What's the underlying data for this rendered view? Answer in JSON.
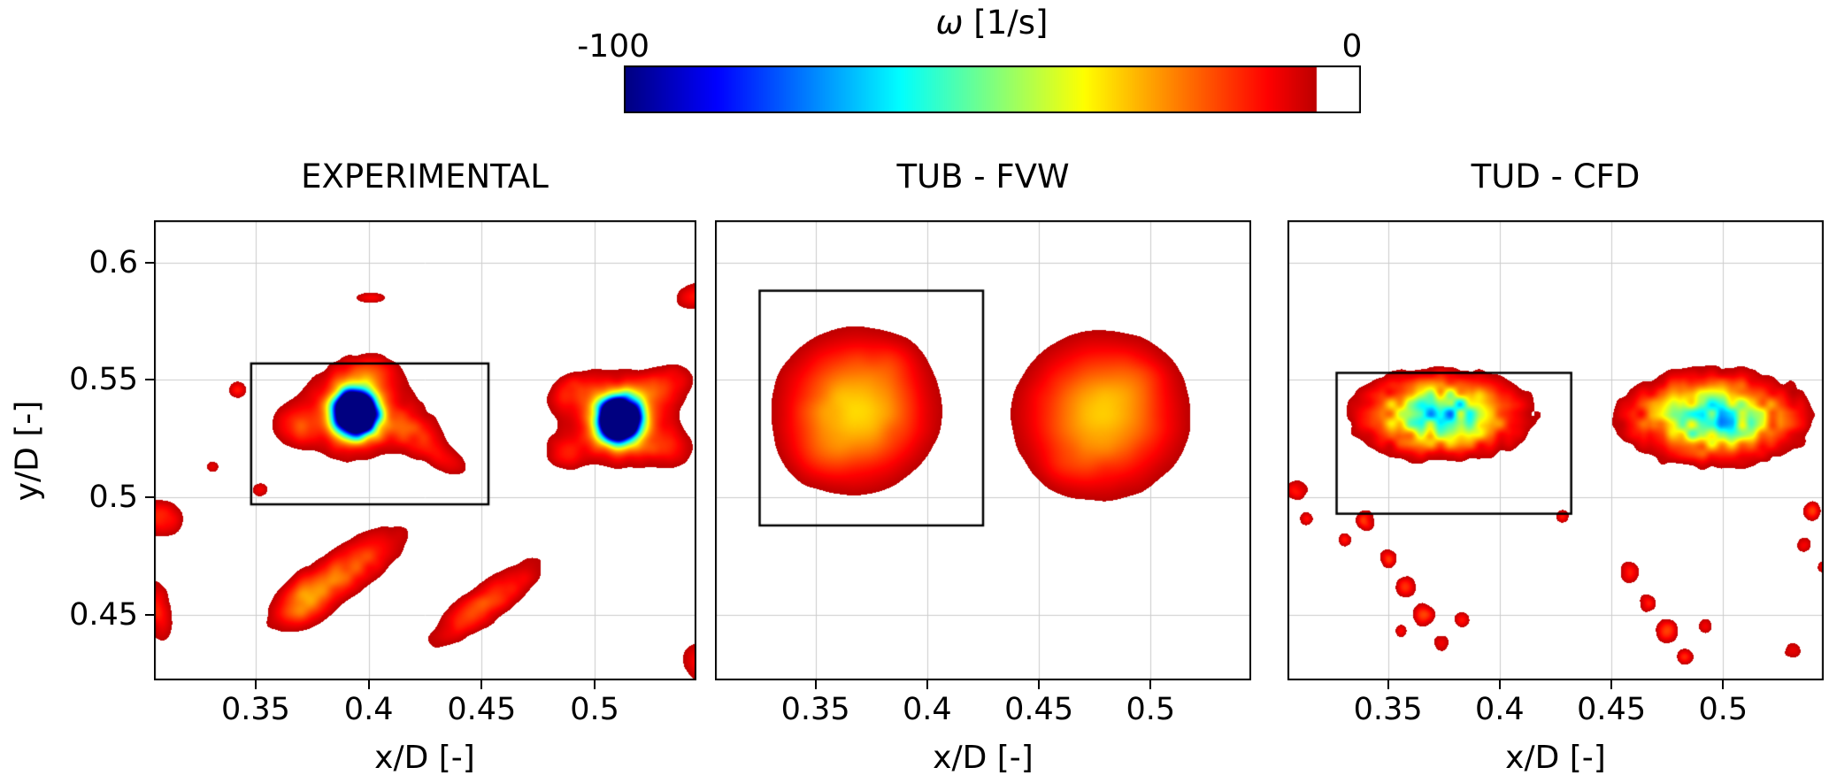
{
  "figure": {
    "background": "#ffffff",
    "colorbar": {
      "title_symbol": "ω",
      "title_units": " [1/s]",
      "min_label": "-100",
      "max_label": "0"
    }
  },
  "chart_data": {
    "type": "heatmap",
    "colormap": "jet",
    "colorbar_title": "ω [1/s]",
    "vmin": -100,
    "vmax": 0,
    "white_threshold": -6,
    "xlim": [
      0.305,
      0.545
    ],
    "ylim": [
      0.422,
      0.618
    ],
    "xtick_values": [
      0.35,
      0.4,
      0.45,
      0.5
    ],
    "xtick_labels": [
      "0.35",
      "0.4",
      "0.45",
      "0.5"
    ],
    "ytick_values": [
      0.6,
      0.55,
      0.5,
      0.45
    ],
    "ytick_labels": [
      "0.6",
      "0.55",
      "0.5",
      "0.45"
    ],
    "grid": true,
    "grid_color": "#cccccc",
    "box_color": "#000000",
    "feature_fields": [
      "x",
      "y",
      "sigma_x",
      "sigma_y",
      "angle_deg",
      "peak_omega"
    ],
    "panels": [
      {
        "title": "EXPERIMENTAL",
        "xlabel": "x/D [-]",
        "ylabel": "y/D [-]",
        "show_yticks": true,
        "box": {
          "x0": 0.348,
          "y0": 0.497,
          "x1": 0.453,
          "y1": 0.557
        },
        "noise": {
          "amp": 0.15,
          "cell": 0.005,
          "seed": 7
        },
        "vortex_cores": [
          [
            0.394,
            0.536
          ],
          [
            0.511,
            0.533
          ]
        ],
        "features": [
          [
            0.394,
            0.536,
            0.0082,
            0.0082,
            0,
            -250
          ],
          [
            0.394,
            0.536,
            0.024,
            0.018,
            0,
            -21
          ],
          [
            0.42,
            0.528,
            0.013,
            0.008,
            -15,
            -13
          ],
          [
            0.368,
            0.53,
            0.01,
            0.008,
            0,
            -13
          ],
          [
            0.399,
            0.553,
            0.012,
            0.007,
            5,
            -13
          ],
          [
            0.434,
            0.516,
            0.013,
            0.006,
            -25,
            -11
          ],
          [
            0.511,
            0.533,
            0.0082,
            0.0082,
            0,
            -250
          ],
          [
            0.511,
            0.533,
            0.022,
            0.018,
            0,
            -21
          ],
          [
            0.53,
            0.547,
            0.014,
            0.008,
            25,
            -14
          ],
          [
            0.49,
            0.545,
            0.011,
            0.007,
            20,
            -13
          ],
          [
            0.487,
            0.519,
            0.009,
            0.007,
            0,
            -12
          ],
          [
            0.532,
            0.521,
            0.011,
            0.008,
            -10,
            -12
          ],
          [
            0.389,
            0.468,
            0.03,
            0.0095,
            33,
            -21
          ],
          [
            0.371,
            0.455,
            0.013,
            0.009,
            33,
            -16
          ],
          [
            0.452,
            0.455,
            0.028,
            0.008,
            35,
            -19
          ],
          [
            0.308,
            0.491,
            0.01,
            0.008,
            0,
            -16
          ],
          [
            0.307,
            0.452,
            0.006,
            0.013,
            10,
            -15
          ],
          [
            0.342,
            0.546,
            0.004,
            0.004,
            0,
            -13
          ],
          [
            0.401,
            0.585,
            0.007,
            0.0025,
            0,
            -13
          ],
          [
            0.546,
            0.586,
            0.011,
            0.006,
            10,
            -15
          ],
          [
            0.548,
            0.43,
            0.01,
            0.009,
            0,
            -14
          ],
          [
            0.331,
            0.513,
            0.0035,
            0.003,
            0,
            -11
          ],
          [
            0.352,
            0.503,
            0.004,
            0.0035,
            0,
            -11
          ]
        ]
      },
      {
        "title": "TUB - FVW",
        "xlabel": "x/D [-]",
        "ylabel": "y/D [-]",
        "show_yticks": false,
        "box": {
          "x0": 0.325,
          "y0": 0.488,
          "x1": 0.425,
          "y1": 0.588
        },
        "noise": {
          "amp": 0.05,
          "cell": 0.008,
          "seed": 4
        },
        "vortex_cores": [
          [
            0.368,
            0.537
          ],
          [
            0.478,
            0.535
          ]
        ],
        "features": [
          [
            0.368,
            0.537,
            0.029,
            0.027,
            0,
            -34
          ],
          [
            0.352,
            0.517,
            0.013,
            0.011,
            0,
            -5
          ],
          [
            0.385,
            0.558,
            0.011,
            0.009,
            0,
            -4
          ],
          [
            0.478,
            0.535,
            0.031,
            0.028,
            0,
            -32
          ],
          [
            0.495,
            0.552,
            0.012,
            0.01,
            0,
            -4
          ],
          [
            0.462,
            0.513,
            0.011,
            0.009,
            0,
            -4
          ]
        ]
      },
      {
        "title": "TUD - CFD",
        "xlabel": "x/D [-]",
        "ylabel": "y/D [-]",
        "show_yticks": false,
        "box": {
          "x0": 0.327,
          "y0": 0.493,
          "x1": 0.432,
          "y1": 0.553
        },
        "noise": {
          "amp": 0.3,
          "cell": 0.0045,
          "seed": 11
        },
        "vortex_cores": [
          [
            0.374,
            0.535
          ],
          [
            0.496,
            0.534
          ]
        ],
        "features": [
          [
            0.374,
            0.535,
            0.026,
            0.0125,
            0,
            -56
          ],
          [
            0.374,
            0.535,
            0.034,
            0.017,
            0,
            -10
          ],
          [
            0.496,
            0.534,
            0.028,
            0.0135,
            0,
            -54
          ],
          [
            0.496,
            0.534,
            0.036,
            0.018,
            0,
            -10
          ],
          [
            0.34,
            0.49,
            0.004,
            0.004,
            0,
            -18
          ],
          [
            0.331,
            0.482,
            0.003,
            0.003,
            0,
            -14
          ],
          [
            0.35,
            0.474,
            0.004,
            0.004,
            0,
            -16
          ],
          [
            0.358,
            0.462,
            0.0045,
            0.0045,
            0,
            -15
          ],
          [
            0.366,
            0.45,
            0.005,
            0.005,
            0,
            -16
          ],
          [
            0.374,
            0.438,
            0.004,
            0.004,
            0,
            -14
          ],
          [
            0.383,
            0.448,
            0.0035,
            0.0035,
            0,
            -13
          ],
          [
            0.356,
            0.443,
            0.003,
            0.003,
            0,
            -12
          ],
          [
            0.309,
            0.503,
            0.005,
            0.004,
            0,
            -16
          ],
          [
            0.313,
            0.491,
            0.0035,
            0.0035,
            0,
            -13
          ],
          [
            0.458,
            0.468,
            0.0045,
            0.0045,
            0,
            -15
          ],
          [
            0.466,
            0.455,
            0.004,
            0.004,
            0,
            -14
          ],
          [
            0.475,
            0.443,
            0.005,
            0.005,
            0,
            -16
          ],
          [
            0.483,
            0.432,
            0.004,
            0.004,
            0,
            -13
          ],
          [
            0.492,
            0.445,
            0.0035,
            0.0035,
            0,
            -12
          ],
          [
            0.54,
            0.494,
            0.004,
            0.004,
            0,
            -15
          ],
          [
            0.536,
            0.48,
            0.0035,
            0.0035,
            0,
            -13
          ],
          [
            0.545,
            0.47,
            0.003,
            0.003,
            0,
            -12
          ],
          [
            0.531,
            0.435,
            0.004,
            0.004,
            0,
            -13
          ],
          [
            0.428,
            0.492,
            0.003,
            0.003,
            0,
            -12
          ]
        ]
      }
    ]
  }
}
